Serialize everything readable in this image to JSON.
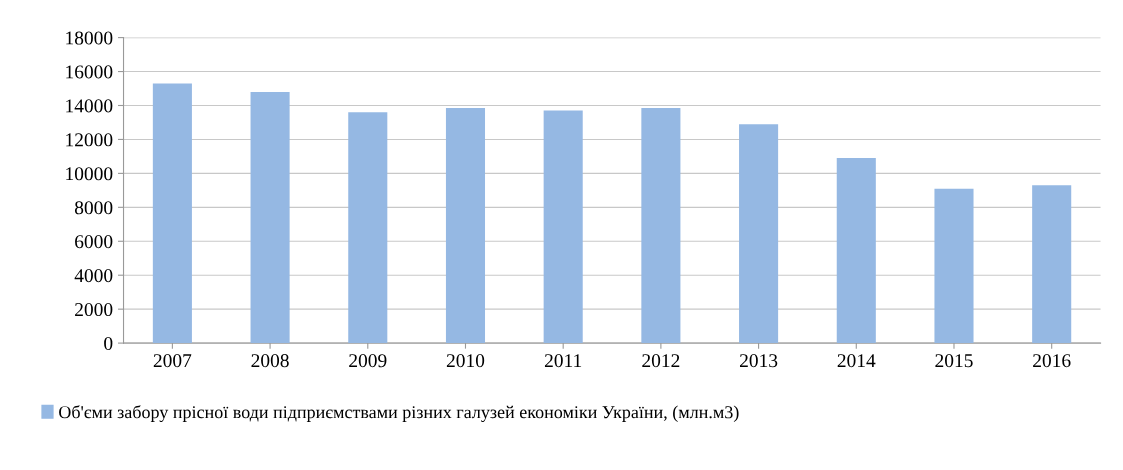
{
  "chart_data": {
    "type": "bar",
    "categories": [
      "2007",
      "2008",
      "2009",
      "2010",
      "2011",
      "2012",
      "2013",
      "2014",
      "2015",
      "2016"
    ],
    "series": [
      {
        "name": "Об'єми забору прісної води підприємствами різних галузей економіки України, (млн.м3)",
        "color": "#95b8e3",
        "values": [
          15300,
          14800,
          13600,
          13850,
          13700,
          13850,
          12900,
          10900,
          9100,
          9300
        ]
      }
    ],
    "ylim": [
      0,
      18000
    ],
    "yticks": [
      0,
      2000,
      4000,
      6000,
      8000,
      10000,
      12000,
      14000,
      16000,
      18000
    ],
    "grid": "y",
    "legend": "bottom"
  }
}
